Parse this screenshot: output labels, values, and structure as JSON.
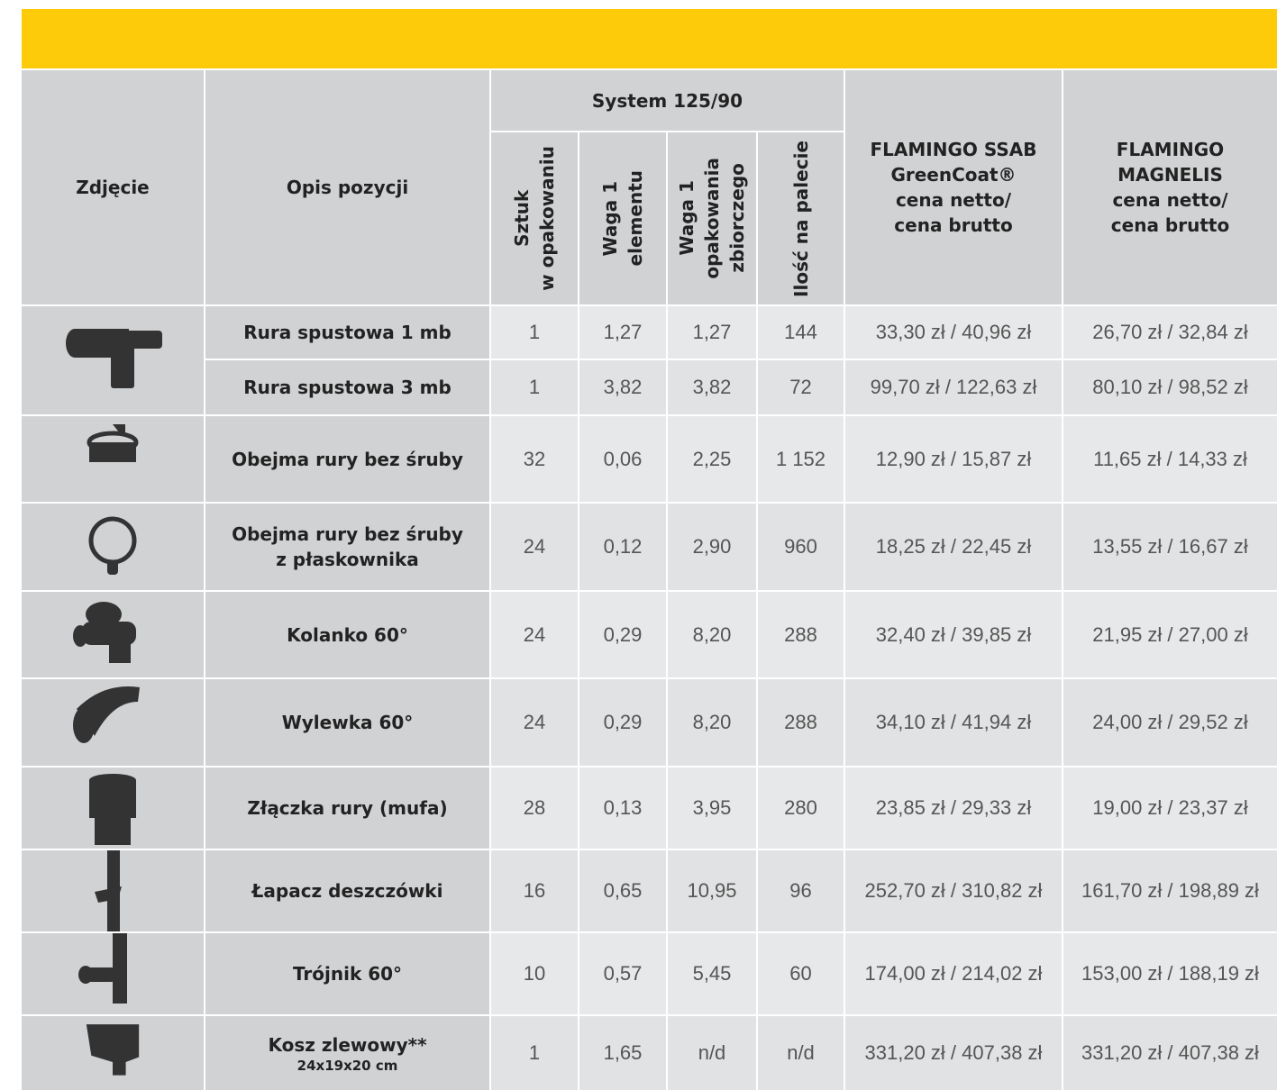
{
  "header": {
    "photo": "Zdjęcie",
    "description": "Opis pozycji",
    "group": "System 125/90",
    "subcolumns": [
      [
        "Sztuk",
        "w opakowaniu"
      ],
      [
        "Waga 1",
        "elementu"
      ],
      [
        "Waga 1",
        "opakowania",
        "zbiorczego"
      ],
      [
        "Ilość na palecie"
      ]
    ],
    "prices": [
      [
        "FLAMINGO SSAB",
        "GreenCoat®",
        "cena netto/",
        "cena brutto"
      ],
      [
        "FLAMINGO",
        "MAGNELIS",
        "cena netto/",
        "cena brutto"
      ]
    ]
  },
  "rows": [
    {
      "name": [
        "Rura spustowa 1 mb"
      ],
      "values": [
        "1",
        "1,27",
        "1,27",
        "144",
        "33,30 zł / 40,96 zł",
        "26,70 zł / 32,84 zł"
      ]
    },
    {
      "name": [
        "Rura spustowa 3 mb"
      ],
      "values": [
        "1",
        "3,82",
        "3,82",
        "72",
        "99,70 zł / 122,63 zł",
        "80,10 zł / 98,52 zł"
      ]
    },
    {
      "name": [
        "Obejma rury bez śruby"
      ],
      "values": [
        "32",
        "0,06",
        "2,25",
        "1 152",
        "12,90 zł / 15,87 zł",
        "11,65 zł / 14,33 zł"
      ]
    },
    {
      "name": [
        "Obejma rury bez śruby",
        "z płaskownika"
      ],
      "values": [
        "24",
        "0,12",
        "2,90",
        "960",
        "18,25 zł / 22,45 zł",
        "13,55 zł / 16,67 zł"
      ]
    },
    {
      "name": [
        "Kolanko 60°"
      ],
      "values": [
        "24",
        "0,29",
        "8,20",
        "288",
        "32,40 zł / 39,85 zł",
        "21,95 zł / 27,00 zł"
      ]
    },
    {
      "name": [
        "Wylewka 60°"
      ],
      "values": [
        "24",
        "0,29",
        "8,20",
        "288",
        "34,10 zł / 41,94 zł",
        "24,00 zł / 29,52 zł"
      ]
    },
    {
      "name": [
        "Złączka rury (mufa)"
      ],
      "values": [
        "28",
        "0,13",
        "3,95",
        "280",
        "23,85 zł / 29,33 zł",
        "19,00 zł / 23,37 zł"
      ]
    },
    {
      "name": [
        "Łapacz deszczówki"
      ],
      "values": [
        "16",
        "0,65",
        "10,95",
        "96",
        "252,70 zł / 310,82 zł",
        "161,70 zł / 198,89 zł"
      ]
    },
    {
      "name": [
        "Trójnik 60°"
      ],
      "values": [
        "10",
        "0,57",
        "5,45",
        "60",
        "174,00 zł / 214,02 zł",
        "153,00 zł / 188,19 zł"
      ]
    },
    {
      "name": [
        "Kosz zlewowy**"
      ],
      "note": "24x19x20 cm",
      "values": [
        "1",
        "1,65",
        "n/d",
        "n/d",
        "331,20 zł / 407,38 zł",
        "331,20 zł / 407,38 zł"
      ]
    }
  ]
}
